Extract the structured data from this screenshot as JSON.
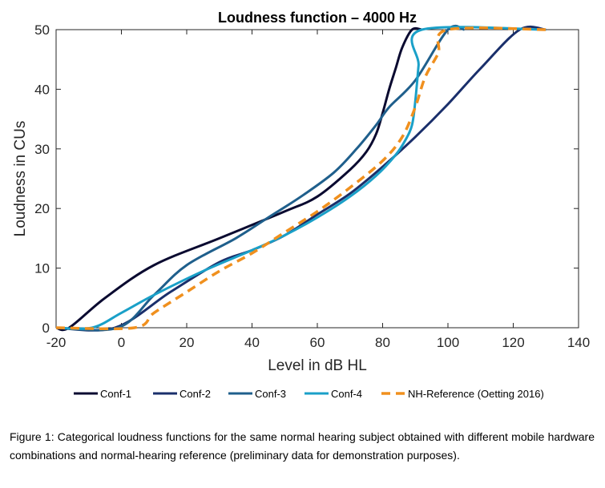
{
  "chart_data": {
    "type": "line",
    "title": "Loudness function – 4000 Hz",
    "xlabel": "Level in dB HL",
    "ylabel": "Loudness in CUs",
    "xlim": [
      -20,
      140
    ],
    "ylim": [
      0,
      50
    ],
    "xticks": [
      -20,
      0,
      20,
      40,
      60,
      80,
      100,
      120,
      140
    ],
    "yticks": [
      0,
      10,
      20,
      30,
      40,
      50
    ],
    "grid": false,
    "legend_position": "bottom",
    "series": [
      {
        "name": "Conf-1",
        "color": "#0a0a30",
        "dashed": false,
        "points": [
          [
            -20,
            0
          ],
          [
            -16,
            0
          ],
          [
            -5,
            5
          ],
          [
            10,
            10.5
          ],
          [
            30,
            15
          ],
          [
            50,
            19.5
          ],
          [
            60,
            22
          ],
          [
            70,
            26.5
          ],
          [
            75,
            29.5
          ],
          [
            78,
            32.5
          ],
          [
            80,
            36
          ],
          [
            82,
            40
          ],
          [
            84,
            43.5
          ],
          [
            86,
            47
          ],
          [
            89,
            50
          ],
          [
            92,
            50
          ]
        ]
      },
      {
        "name": "Conf-2",
        "color": "#1a2f6b",
        "dashed": false,
        "points": [
          [
            -20,
            0
          ],
          [
            -2,
            0
          ],
          [
            15,
            6
          ],
          [
            30,
            11
          ],
          [
            40,
            13
          ],
          [
            50,
            15.5
          ],
          [
            60,
            19
          ],
          [
            70,
            22.5
          ],
          [
            80,
            27
          ],
          [
            90,
            32
          ],
          [
            100,
            37.5
          ],
          [
            110,
            43.5
          ],
          [
            122,
            50
          ],
          [
            130,
            50
          ]
        ]
      },
      {
        "name": "Conf-3",
        "color": "#1f5f8c",
        "dashed": false,
        "points": [
          [
            -20,
            0
          ],
          [
            -1,
            0
          ],
          [
            10,
            5.5
          ],
          [
            20,
            10.5
          ],
          [
            35,
            15
          ],
          [
            45,
            18.5
          ],
          [
            55,
            22
          ],
          [
            65,
            26
          ],
          [
            72,
            30
          ],
          [
            78,
            34
          ],
          [
            82,
            37
          ],
          [
            90,
            41.5
          ],
          [
            100,
            50
          ],
          [
            105,
            50
          ]
        ]
      },
      {
        "name": "Conf-4",
        "color": "#1aa0c8",
        "dashed": false,
        "points": [
          [
            -20,
            0
          ],
          [
            -9,
            0
          ],
          [
            0,
            2.5
          ],
          [
            10,
            5.5
          ],
          [
            25,
            9.5
          ],
          [
            40,
            13
          ],
          [
            50,
            15.5
          ],
          [
            60,
            18.5
          ],
          [
            70,
            22
          ],
          [
            78,
            25.5
          ],
          [
            84,
            29
          ],
          [
            87,
            31.5
          ],
          [
            89,
            34
          ],
          [
            90,
            38
          ],
          [
            91,
            44
          ],
          [
            92,
            50
          ],
          [
            130,
            50
          ]
        ]
      },
      {
        "name": "NH-Reference (Oetting 2016)",
        "color": "#f0901e",
        "dashed": true,
        "points": [
          [
            -20,
            0
          ],
          [
            4,
            0
          ],
          [
            10,
            2.5
          ],
          [
            20,
            6
          ],
          [
            30,
            9.5
          ],
          [
            40,
            12.5
          ],
          [
            50,
            16
          ],
          [
            60,
            19.5
          ],
          [
            70,
            23.5
          ],
          [
            80,
            28
          ],
          [
            86,
            32
          ],
          [
            90,
            37
          ],
          [
            93,
            42
          ],
          [
            97,
            46
          ],
          [
            100,
            50
          ],
          [
            130,
            50
          ]
        ]
      }
    ]
  },
  "caption": "Figure 1: Categorical loudness functions for the same normal hearing subject obtained with different mobile hardware combinations and normal-hearing reference (preliminary data for demonstration purposes)."
}
